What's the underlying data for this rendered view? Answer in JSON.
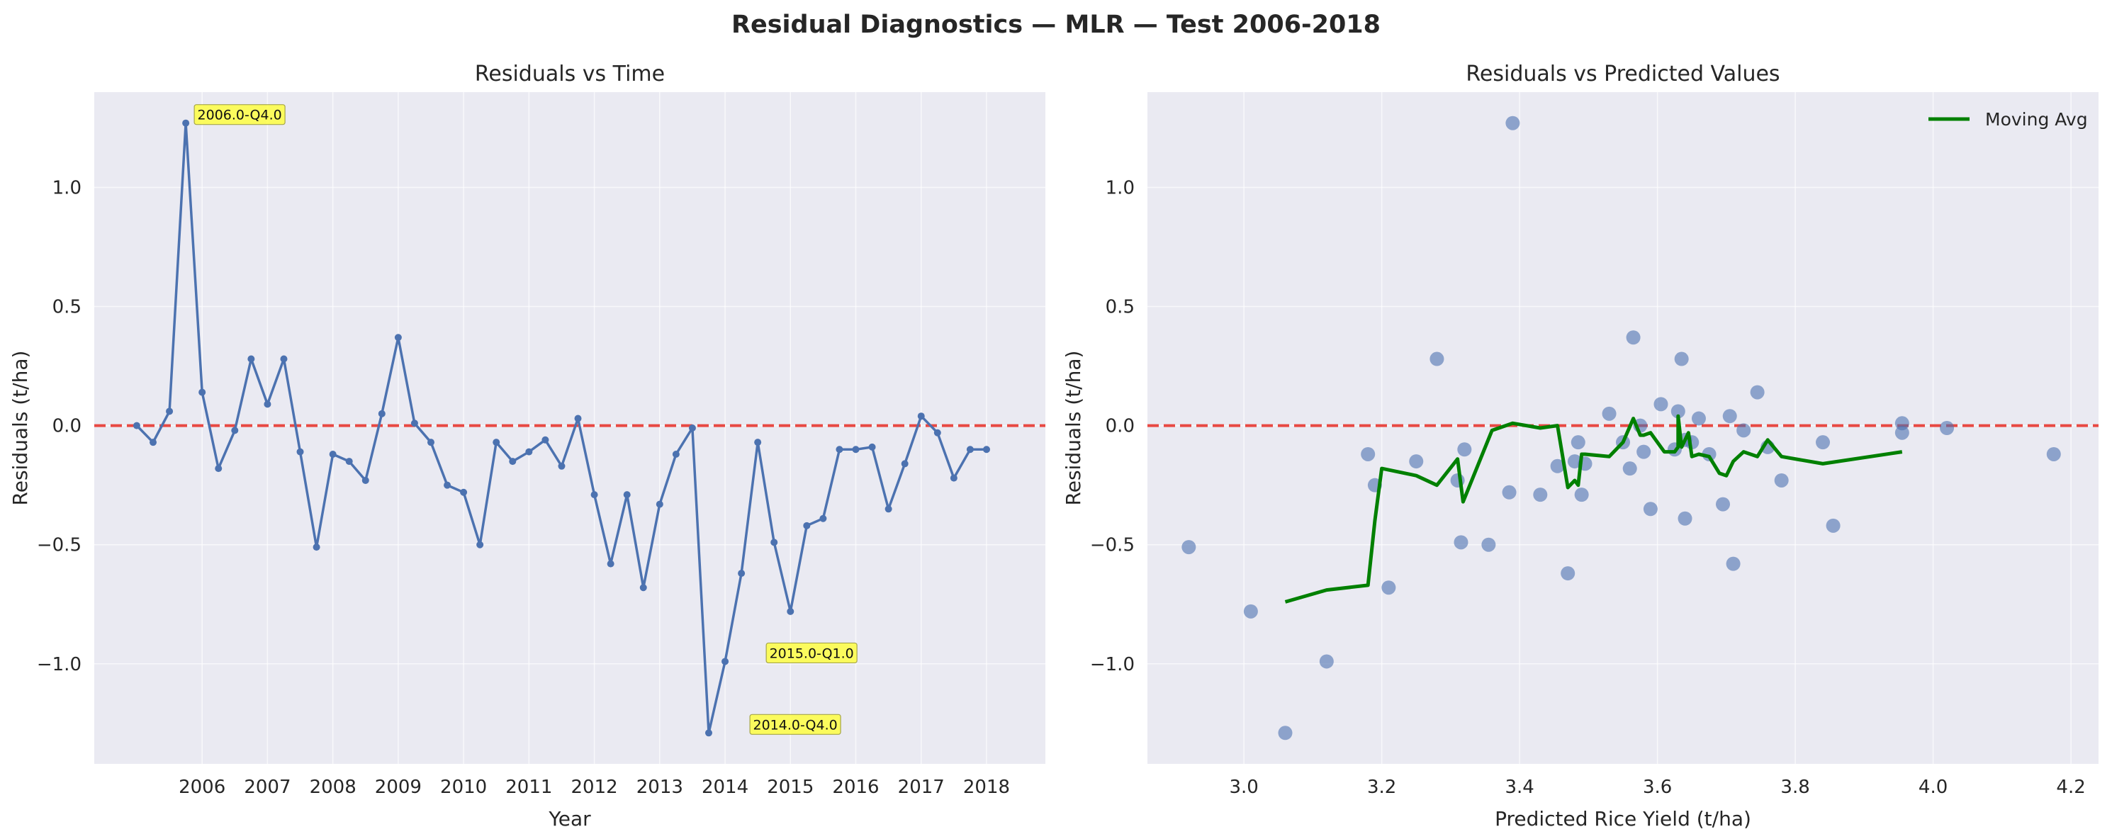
{
  "figure": {
    "suptitle": "Residual Diagnostics — MLR — Test 2006-2018",
    "colors": {
      "background": "#ffffff",
      "axes_bg": "#EAEAF2",
      "grid": "#ffffff",
      "series": "#4C72B0",
      "zero_line": "#E8403A",
      "moving_avg": "#008000",
      "annotation_bg": "#FFFF44",
      "annotation_border": "#9A9A2C",
      "text": "#262626"
    }
  },
  "chart_data": [
    {
      "type": "line",
      "title": "Residuals vs Time",
      "xlabel": "Year",
      "ylabel": "Residuals (t/ha)",
      "xlim": [
        2004.35,
        2018.9
      ],
      "ylim": [
        -1.42,
        1.4
      ],
      "xticks": [
        2006,
        2007,
        2008,
        2009,
        2010,
        2011,
        2012,
        2013,
        2014,
        2015,
        2016,
        2017,
        2018
      ],
      "xtick_labels": [
        "2006",
        "2007",
        "2008",
        "2009",
        "2010",
        "2011",
        "2012",
        "2013",
        "2014",
        "2015",
        "2016",
        "2017",
        "2018"
      ],
      "yticks": [
        -1.0,
        -0.5,
        0.0,
        0.5,
        1.0
      ],
      "ytick_labels": [
        "−1.0",
        "−0.5",
        "0.0",
        "0.5",
        "1.0"
      ],
      "grid": true,
      "zero_line": 0,
      "x": [
        2005.0,
        2005.25,
        2005.5,
        2005.75,
        2006.0,
        2006.25,
        2006.5,
        2006.75,
        2007.0,
        2007.25,
        2007.5,
        2007.75,
        2008.0,
        2008.25,
        2008.5,
        2008.75,
        2009.0,
        2009.25,
        2009.5,
        2009.75,
        2010.0,
        2010.25,
        2010.5,
        2010.75,
        2011.0,
        2011.25,
        2011.5,
        2011.75,
        2012.0,
        2012.25,
        2012.5,
        2012.75,
        2013.0,
        2013.25,
        2013.5,
        2013.75,
        2014.0,
        2014.25,
        2014.5,
        2014.75,
        2015.0,
        2015.25,
        2015.5,
        2015.75,
        2016.0,
        2016.25,
        2016.5,
        2016.75,
        2017.0,
        2017.25,
        2017.5,
        2017.75,
        2018.0
      ],
      "y": [
        0.0,
        -0.07,
        0.06,
        1.27,
        0.14,
        -0.18,
        -0.02,
        0.28,
        0.09,
        0.28,
        -0.11,
        -0.51,
        -0.12,
        -0.15,
        -0.23,
        0.05,
        0.37,
        0.01,
        -0.07,
        -0.25,
        -0.28,
        -0.5,
        -0.07,
        -0.15,
        -0.11,
        -0.06,
        -0.17,
        0.03,
        -0.29,
        -0.58,
        -0.29,
        -0.68,
        -0.33,
        -0.12,
        -0.01,
        -1.29,
        -0.99,
        -0.62,
        -0.07,
        -0.49,
        -0.78,
        -0.42,
        -0.39,
        -0.1,
        -0.1,
        -0.09,
        -0.35,
        -0.16,
        0.04,
        -0.03,
        -0.22,
        -0.1,
        -0.1
      ],
      "annotations": [
        {
          "text": "2006.0-Q4.0",
          "x": 2005.75,
          "y": 1.27
        },
        {
          "text": "2015.0-Q1.0",
          "x": 2014.5,
          "y": -0.99
        },
        {
          "text": "2014.0-Q4.0",
          "x": 2014.25,
          "y": -1.29
        }
      ]
    },
    {
      "type": "scatter",
      "title": "Residuals vs Predicted Values",
      "xlabel": "Predicted Rice Yield (t/ha)",
      "ylabel": "Residuals (t/ha)",
      "xlim": [
        2.86,
        4.24
      ],
      "ylim": [
        -1.42,
        1.4
      ],
      "xticks": [
        3.0,
        3.2,
        3.4,
        3.6,
        3.8,
        4.0,
        4.2
      ],
      "xtick_labels": [
        "3.0",
        "3.2",
        "3.4",
        "3.6",
        "3.8",
        "4.0",
        "4.2"
      ],
      "yticks": [
        -1.0,
        -0.5,
        0.0,
        0.5,
        1.0
      ],
      "ytick_labels": [
        "−1.0",
        "−0.5",
        "0.0",
        "0.5",
        "1.0"
      ],
      "grid": true,
      "zero_line": 0,
      "legend": {
        "position": "upper right",
        "entries": [
          "Moving Avg"
        ]
      },
      "points": [
        [
          2.92,
          -0.51
        ],
        [
          3.01,
          -0.78
        ],
        [
          3.06,
          -1.29
        ],
        [
          3.12,
          -0.99
        ],
        [
          3.18,
          -0.12
        ],
        [
          3.19,
          -0.25
        ],
        [
          3.21,
          -0.68
        ],
        [
          3.25,
          -0.15
        ],
        [
          3.28,
          0.28
        ],
        [
          3.31,
          -0.23
        ],
        [
          3.315,
          -0.49
        ],
        [
          3.32,
          -0.1
        ],
        [
          3.355,
          -0.5
        ],
        [
          3.385,
          -0.28
        ],
        [
          3.39,
          1.27
        ],
        [
          3.43,
          -0.29
        ],
        [
          3.455,
          -0.17
        ],
        [
          3.47,
          -0.62
        ],
        [
          3.48,
          -0.15
        ],
        [
          3.485,
          -0.07
        ],
        [
          3.49,
          -0.29
        ],
        [
          3.495,
          -0.16
        ],
        [
          3.53,
          0.05
        ],
        [
          3.55,
          -0.07
        ],
        [
          3.56,
          -0.18
        ],
        [
          3.565,
          0.37
        ],
        [
          3.575,
          0.0
        ],
        [
          3.58,
          -0.11
        ],
        [
          3.59,
          -0.35
        ],
        [
          3.605,
          0.09
        ],
        [
          3.625,
          -0.1
        ],
        [
          3.63,
          0.06
        ],
        [
          3.635,
          0.28
        ],
        [
          3.64,
          -0.39
        ],
        [
          3.64,
          -0.06
        ],
        [
          3.65,
          -0.07
        ],
        [
          3.66,
          0.03
        ],
        [
          3.675,
          -0.12
        ],
        [
          3.695,
          -0.33
        ],
        [
          3.705,
          0.04
        ],
        [
          3.71,
          -0.58
        ],
        [
          3.725,
          -0.02
        ],
        [
          3.745,
          0.14
        ],
        [
          3.76,
          -0.09
        ],
        [
          3.78,
          -0.23
        ],
        [
          3.84,
          -0.07
        ],
        [
          3.855,
          -0.42
        ],
        [
          3.955,
          0.01
        ],
        [
          3.955,
          -0.03
        ],
        [
          4.02,
          -0.01
        ],
        [
          4.175,
          -0.12
        ]
      ],
      "series": [
        {
          "name": "Moving Avg",
          "x": [
            3.06,
            3.12,
            3.18,
            3.19,
            3.2,
            3.25,
            3.28,
            3.31,
            3.318,
            3.36,
            3.38,
            3.39,
            3.43,
            3.455,
            3.47,
            3.48,
            3.485,
            3.49,
            3.495,
            3.53,
            3.55,
            3.565,
            3.575,
            3.58,
            3.59,
            3.61,
            3.625,
            3.63,
            3.63,
            3.635,
            3.645,
            3.65,
            3.66,
            3.675,
            3.69,
            3.7,
            3.71,
            3.725,
            3.745,
            3.76,
            3.78,
            3.84,
            3.955
          ],
          "y": [
            -0.74,
            -0.69,
            -0.67,
            -0.4,
            -0.18,
            -0.21,
            -0.25,
            -0.14,
            -0.32,
            -0.02,
            0.0,
            0.01,
            -0.01,
            0.0,
            -0.26,
            -0.23,
            -0.25,
            -0.12,
            -0.12,
            -0.13,
            -0.07,
            0.03,
            -0.04,
            -0.04,
            -0.03,
            -0.11,
            -0.11,
            -0.09,
            0.04,
            -0.09,
            -0.03,
            -0.13,
            -0.12,
            -0.13,
            -0.2,
            -0.21,
            -0.15,
            -0.11,
            -0.13,
            -0.06,
            -0.13,
            -0.16,
            -0.11
          ]
        }
      ]
    }
  ]
}
